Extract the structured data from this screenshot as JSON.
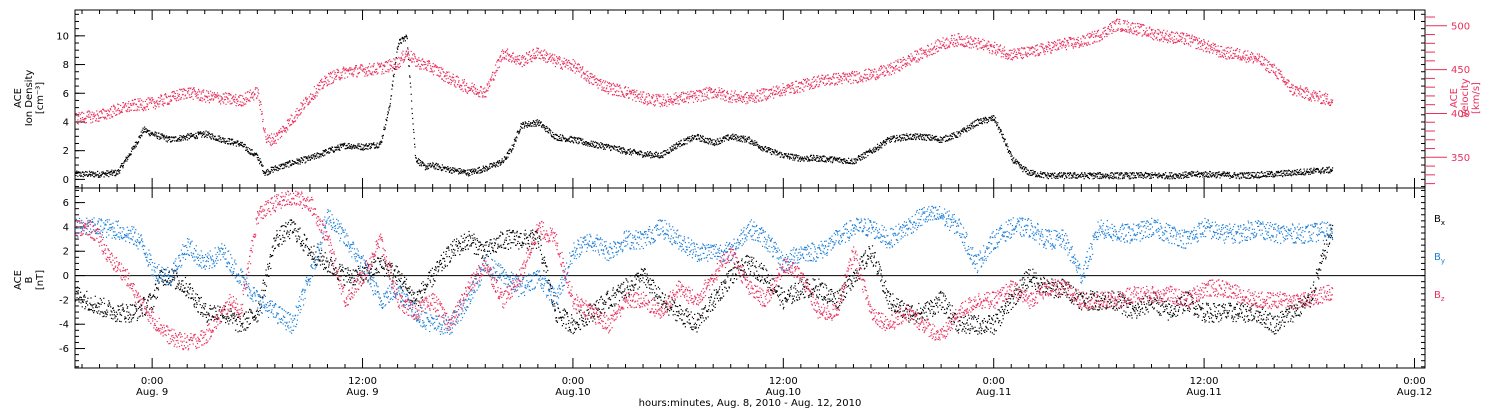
{
  "chart_data": {
    "type": "scatter",
    "xlabel": "hours:minutes, Aug.  8, 2010 - Aug. 12, 2010",
    "x_ticks": [
      {
        "t": 0,
        "time": "0:00",
        "date": "Aug. 9"
      },
      {
        "t": 12,
        "time": "12:00",
        "date": "Aug. 9"
      },
      {
        "t": 24,
        "time": "0:00",
        "date": "Aug.10"
      },
      {
        "t": 36,
        "time": "12:00",
        "date": "Aug.10"
      },
      {
        "t": 48,
        "time": "0:00",
        "date": "Aug.11"
      },
      {
        "t": 60,
        "time": "12:00",
        "date": "Aug.11"
      },
      {
        "t": 72,
        "time": "0:00",
        "date": "Aug.12"
      }
    ],
    "x_range_hours": [
      -4.4,
      72.6
    ],
    "data_end_hour": 67.3,
    "colors": {
      "black": "#000000",
      "pink": "#e8305c",
      "blue": "#1e7fd8"
    },
    "panels": [
      {
        "id": "plasma",
        "left_axis": {
          "label_lines": [
            "ACE",
            "Ion Density",
            "[cm⁻³]"
          ],
          "ticks": [
            "0",
            "2",
            "4",
            "6",
            "8",
            "10"
          ],
          "tick_values": [
            0,
            2,
            4,
            6,
            8,
            10
          ],
          "ylim": [
            -0.6,
            11.8
          ]
        },
        "right_axis": {
          "label_lines": [
            "ACE",
            "Velocity",
            "[km/s]"
          ],
          "ticks": [
            "350",
            "400",
            "450",
            "500"
          ],
          "tick_values": [
            350,
            400,
            450,
            500
          ],
          "ylim": [
            315,
            518
          ],
          "color": "#e8305c"
        },
        "series": [
          {
            "key": "density",
            "color": "#000000",
            "axis": "left",
            "noise": 0.22,
            "x": [
              -4.4,
              -3,
              -2,
              -1.2,
              -0.5,
              0,
              1,
              2,
              3,
              4,
              5,
              6,
              6.4,
              7,
              8,
              9,
              10,
              11,
              12,
              13,
              13.5,
              14,
              14.5,
              15,
              15.5,
              16,
              17,
              18,
              19,
              20,
              20.5,
              21,
              22,
              23,
              24,
              25,
              26,
              27,
              28,
              29,
              30,
              31,
              32,
              33,
              34,
              35,
              36,
              37,
              38,
              39,
              40,
              41,
              42,
              43,
              44,
              45,
              46,
              47,
              48,
              48.5,
              49,
              49.5,
              50,
              51,
              52,
              54,
              56,
              58,
              60,
              62,
              64,
              66,
              67.3
            ],
            "y": [
              0.4,
              0.4,
              0.5,
              2.0,
              3.5,
              3.2,
              2.8,
              3.0,
              3.2,
              2.8,
              2.5,
              1.6,
              0.5,
              0.8,
              1.2,
              1.5,
              2.0,
              2.4,
              2.3,
              2.5,
              5.0,
              9.5,
              10.0,
              1.5,
              0.9,
              1.0,
              0.7,
              0.5,
              0.8,
              1.3,
              2.2,
              3.8,
              4.0,
              3.0,
              2.8,
              2.5,
              2.3,
              2.0,
              1.8,
              1.7,
              2.5,
              3.0,
              2.6,
              3.0,
              2.8,
              2.1,
              1.7,
              1.5,
              1.5,
              1.4,
              1.3,
              2.0,
              2.8,
              3.0,
              3.0,
              2.8,
              3.2,
              4.0,
              4.3,
              3.0,
              1.5,
              0.9,
              0.5,
              0.3,
              0.3,
              0.3,
              0.3,
              0.3,
              0.4,
              0.3,
              0.4,
              0.6,
              0.7
            ]
          },
          {
            "key": "velocity",
            "color": "#e8305c",
            "axis": "right",
            "noise": 7,
            "x": [
              -4.4,
              -3,
              -2,
              -1,
              0,
              1,
              2,
              3,
              4,
              5,
              5.5,
              6,
              6.5,
              7,
              8,
              9,
              10,
              11,
              12,
              13,
              14,
              14.5,
              15,
              16,
              17,
              18,
              19,
              20,
              21,
              22,
              23,
              24,
              25,
              26,
              27,
              28,
              29,
              30,
              31,
              32,
              33,
              34,
              35,
              36,
              37,
              38,
              39,
              40,
              41,
              42,
              43,
              44,
              45,
              46,
              47,
              48,
              49,
              50,
              51,
              52,
              53,
              54,
              55,
              56,
              57,
              58,
              59,
              60,
              61,
              62,
              63,
              64,
              65,
              66,
              67.3
            ],
            "y": [
              395,
              398,
              405,
              410,
              412,
              418,
              425,
              420,
              418,
              415,
              420,
              425,
              370,
              372,
              395,
              420,
              440,
              448,
              450,
              452,
              458,
              470,
              460,
              452,
              440,
              430,
              425,
              470,
              460,
              470,
              460,
              455,
              440,
              430,
              425,
              418,
              415,
              418,
              420,
              425,
              420,
              418,
              423,
              428,
              432,
              438,
              440,
              442,
              445,
              450,
              460,
              470,
              480,
              485,
              480,
              475,
              468,
              470,
              475,
              480,
              482,
              490,
              502,
              498,
              492,
              488,
              485,
              478,
              470,
              468,
              463,
              450,
              428,
              422,
              415
            ]
          }
        ]
      },
      {
        "id": "imf",
        "left_axis": {
          "label_lines": [
            "ACE",
            "B",
            "[nT]"
          ],
          "ticks": [
            "-6",
            "-4",
            "-2",
            "0",
            "2",
            "4",
            "6"
          ],
          "tick_values": [
            -6,
            -4,
            -2,
            0,
            2,
            4,
            6
          ],
          "ylim": [
            -7.6,
            7.2
          ]
        },
        "legend": [
          {
            "name": "B",
            "sub": "x",
            "color": "#000000"
          },
          {
            "name": "B",
            "sub": "y",
            "color": "#1e7fd8"
          },
          {
            "name": "B",
            "sub": "z",
            "color": "#e8305c"
          }
        ],
        "series": [
          {
            "key": "bx",
            "color": "#000000",
            "noise": 0.8,
            "x": [
              -4.4,
              -3,
              -2,
              -1,
              0,
              0.5,
              1,
              2,
              3,
              4,
              5,
              6,
              7,
              8,
              9,
              10,
              11,
              12,
              13,
              14,
              15,
              16,
              17,
              18,
              19,
              20,
              21,
              22,
              23,
              24,
              25,
              26,
              27,
              28,
              29,
              30,
              31,
              32,
              33,
              34,
              35,
              36,
              37,
              38,
              39,
              40,
              41,
              42,
              43,
              44,
              45,
              46,
              47,
              48,
              49,
              50,
              51,
              52,
              53,
              54,
              55,
              56,
              57,
              58,
              59,
              60,
              61,
              62,
              63,
              64,
              65,
              66,
              67.3
            ],
            "y": [
              -1.5,
              -2.5,
              -3,
              -3,
              -2,
              0,
              0,
              -1,
              -3,
              -3,
              -4,
              -3,
              3,
              4,
              2,
              1,
              0,
              0,
              1,
              0,
              -2,
              0,
              2,
              3,
              2,
              3,
              3,
              3,
              -3,
              -4,
              -3,
              -2,
              -1,
              0,
              -2,
              -3,
              -4,
              -2,
              0,
              1,
              0,
              -2,
              -1,
              -1,
              -2,
              0,
              2,
              -2,
              -3,
              -3,
              -2,
              -4,
              -4,
              -4,
              -2,
              0,
              -1,
              -1,
              -2,
              -2,
              -2,
              -3,
              -2,
              -3,
              -2,
              -3,
              -3,
              -3,
              -3,
              -4,
              -3,
              -2,
              4
            ]
          },
          {
            "key": "by",
            "color": "#1e7fd8",
            "noise": 0.8,
            "x": [
              -4.4,
              -3,
              -2,
              -1,
              -0.5,
              0,
              1,
              2,
              3,
              4,
              5,
              6,
              7,
              8,
              9,
              10,
              11,
              12,
              13,
              14,
              15,
              16,
              17,
              18,
              19,
              20,
              21,
              22,
              23,
              24,
              25,
              26,
              27,
              28,
              29,
              30,
              31,
              32,
              33,
              34,
              35,
              36,
              37,
              38,
              39,
              40,
              41,
              42,
              43,
              44,
              45,
              46,
              47,
              48,
              49,
              50,
              51,
              52,
              53,
              54,
              55,
              56,
              57,
              58,
              59,
              60,
              61,
              62,
              63,
              64,
              65,
              66,
              67.3
            ],
            "y": [
              4,
              4,
              3.8,
              3.2,
              2.5,
              0.5,
              0,
              2.5,
              1,
              2,
              0,
              -2,
              -3,
              -4,
              0,
              5,
              3,
              1,
              -2,
              -1,
              -3,
              -4,
              -4,
              -2,
              1,
              0,
              -1,
              0,
              -2,
              2,
              3,
              2,
              3,
              3,
              4,
              3,
              2,
              2,
              2,
              4,
              3,
              1,
              2,
              2,
              3,
              4,
              4,
              3,
              4,
              5,
              5,
              4,
              1,
              3,
              4,
              4,
              3,
              3,
              0,
              4,
              3.5,
              3.5,
              4,
              3.5,
              3,
              4,
              3.5,
              3.5,
              4,
              3.5,
              3.5,
              3.5,
              3.8
            ]
          },
          {
            "key": "bz",
            "color": "#e8305c",
            "noise": 0.7,
            "x": [
              -4.4,
              -3.5,
              -3,
              -2.5,
              -2,
              -1.5,
              -1,
              0,
              1,
              2,
              3,
              4,
              4.5,
              5,
              6,
              7,
              8,
              9,
              10,
              11,
              12,
              13,
              14,
              15,
              16,
              17,
              18,
              19,
              20,
              21,
              22,
              23,
              24,
              25,
              26,
              27,
              28,
              29,
              30,
              31,
              32,
              33,
              34,
              35,
              36,
              37,
              38,
              39,
              40,
              41,
              42,
              43,
              44,
              45,
              46,
              47,
              48,
              49,
              50,
              51,
              52,
              53,
              54,
              55,
              56,
              57,
              58,
              59,
              60,
              61,
              62,
              63,
              64,
              65,
              66,
              67.3
            ],
            "y": [
              4,
              3.8,
              3,
              1.5,
              0.8,
              0,
              -1.5,
              -3.5,
              -5,
              -5.5,
              -5,
              -3,
              -2,
              -3,
              5,
              6,
              6.5,
              6,
              3,
              -2,
              0,
              3,
              -2,
              -3,
              -2,
              -4,
              -1,
              1,
              -2,
              0,
              4,
              3,
              -2,
              -3,
              -4,
              -2,
              -2,
              -3,
              -1,
              -2,
              0,
              2,
              -1,
              -2,
              1,
              0,
              -3,
              -3,
              2,
              -3,
              -4,
              -3,
              -4,
              -5,
              -3,
              -2,
              -2,
              -1,
              -2,
              -1,
              -1,
              -2,
              -2,
              -2,
              -1.5,
              -1.5,
              -1.5,
              -2,
              -1,
              -1,
              -1.5,
              -2,
              -2,
              -2,
              -2,
              -1.2
            ]
          }
        ]
      }
    ]
  }
}
